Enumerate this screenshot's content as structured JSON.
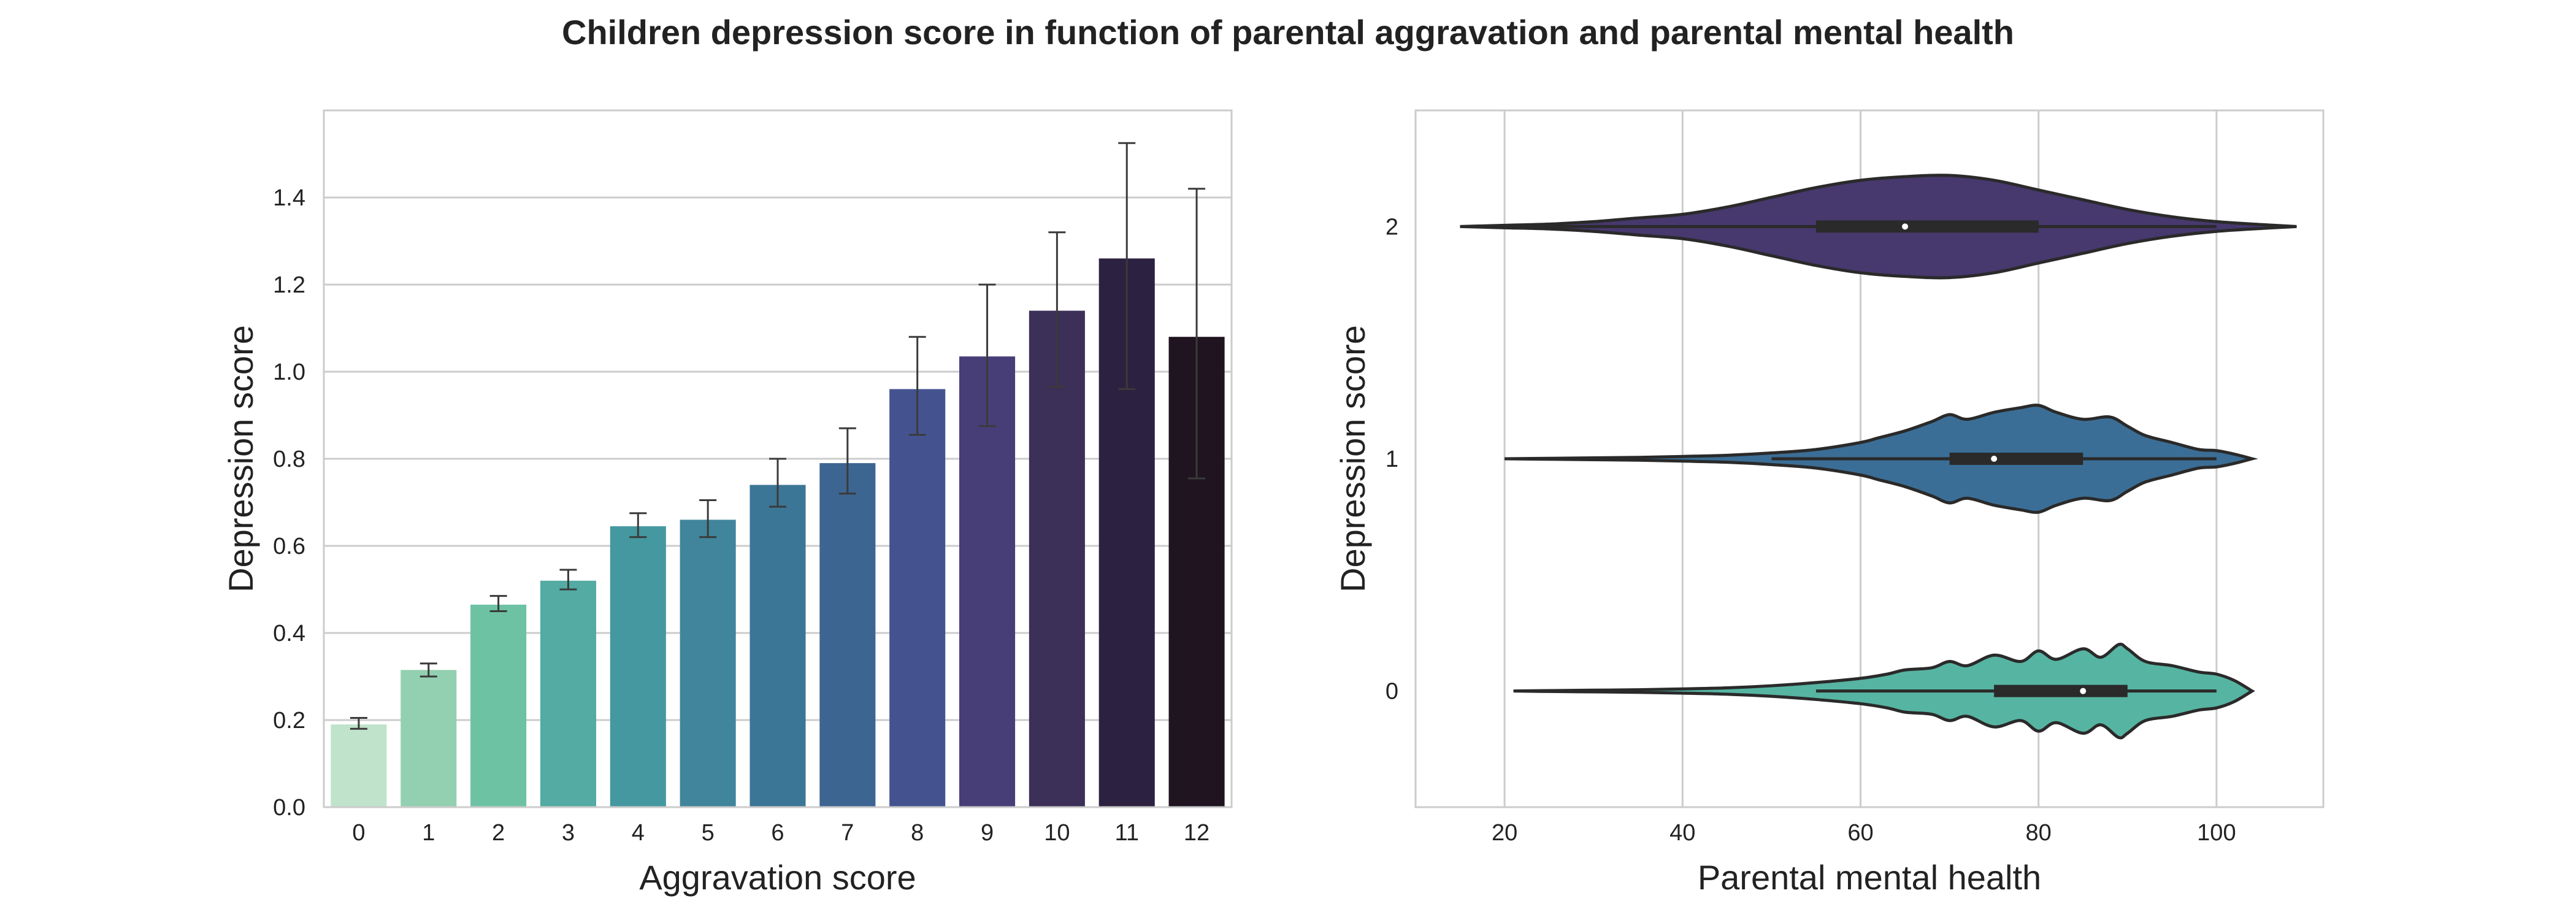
{
  "figure": {
    "title": "Children depression score in function of parental aggravation and parental mental health"
  },
  "chart_data": [
    {
      "type": "bar",
      "title": "",
      "xlabel": "Aggravation score",
      "ylabel": "Depression score",
      "categories": [
        "0",
        "1",
        "2",
        "3",
        "4",
        "5",
        "6",
        "7",
        "8",
        "9",
        "10",
        "11",
        "12"
      ],
      "values": [
        0.19,
        0.315,
        0.465,
        0.52,
        0.645,
        0.66,
        0.74,
        0.79,
        0.96,
        1.035,
        1.14,
        1.26,
        1.08
      ],
      "error_low": [
        0.18,
        0.3,
        0.45,
        0.5,
        0.62,
        0.62,
        0.69,
        0.72,
        0.855,
        0.875,
        0.965,
        0.96,
        0.755
      ],
      "error_high": [
        0.205,
        0.33,
        0.485,
        0.545,
        0.675,
        0.705,
        0.8,
        0.87,
        1.08,
        1.2,
        1.32,
        1.525,
        1.42
      ],
      "colors": [
        "#bfe3cb",
        "#93d0b1",
        "#6dc2a4",
        "#53aba3",
        "#4598a0",
        "#40859b",
        "#3c7696",
        "#3d6592",
        "#445390",
        "#473e78",
        "#3c2f58",
        "#2c2140",
        "#1f141f"
      ],
      "ylim": [
        0,
        1.6
      ],
      "yticks": [
        "0.0",
        "0.2",
        "0.4",
        "0.6",
        "0.8",
        "1.0",
        "1.2",
        "1.4"
      ],
      "ytick_values": [
        0,
        0.2,
        0.4,
        0.6,
        0.8,
        1.0,
        1.2,
        1.4
      ],
      "grid": "horizontal"
    },
    {
      "type": "violin",
      "title": "",
      "xlabel": "Parental mental health",
      "ylabel": "Depression score",
      "xlim": [
        10,
        112
      ],
      "xticks": [
        "20",
        "40",
        "60",
        "80",
        "100"
      ],
      "xtick_values": [
        20,
        40,
        60,
        80,
        100
      ],
      "ylim": [
        -0.5,
        2.5
      ],
      "grid": "vertical",
      "series": [
        {
          "name": "2",
          "position": 2,
          "color": "#47386e",
          "min": 15,
          "max": 109,
          "q1": 55,
          "median": 65,
          "q3": 80,
          "whisker_low": 20,
          "whisker_high": 100,
          "max_halfwidth": 0.22,
          "profile_x": [
            15,
            20,
            25,
            30,
            35,
            40,
            45,
            50,
            55,
            60,
            65,
            70,
            75,
            80,
            85,
            90,
            95,
            100,
            105,
            109
          ],
          "profile_w": [
            0.0,
            0.005,
            0.01,
            0.02,
            0.035,
            0.05,
            0.08,
            0.12,
            0.16,
            0.19,
            0.205,
            0.21,
            0.19,
            0.15,
            0.11,
            0.07,
            0.04,
            0.02,
            0.008,
            0.0
          ]
        },
        {
          "name": "1",
          "position": 1,
          "color": "#3b6e96",
          "min": 20,
          "max": 104,
          "q1": 70,
          "median": 75,
          "q3": 85,
          "whisker_low": 50,
          "whisker_high": 100,
          "max_halfwidth": 0.23,
          "profile_x": [
            20,
            25,
            30,
            35,
            40,
            45,
            50,
            55,
            60,
            62,
            65,
            68,
            70,
            72,
            75,
            78,
            80,
            82,
            85,
            88,
            90,
            92,
            95,
            98,
            100,
            102,
            104
          ],
          "profile_w": [
            0.0,
            0.002,
            0.004,
            0.006,
            0.01,
            0.015,
            0.025,
            0.04,
            0.07,
            0.09,
            0.12,
            0.16,
            0.19,
            0.17,
            0.2,
            0.22,
            0.23,
            0.2,
            0.17,
            0.18,
            0.14,
            0.1,
            0.07,
            0.04,
            0.035,
            0.02,
            0.0
          ]
        },
        {
          "name": "0",
          "position": 0,
          "color": "#56b4a2",
          "min": 21,
          "max": 104,
          "q1": 75,
          "median": 85,
          "q3": 90,
          "whisker_low": 55,
          "whisker_high": 100,
          "max_halfwidth": 0.2,
          "profile_x": [
            21,
            25,
            30,
            35,
            40,
            45,
            50,
            55,
            60,
            63,
            65,
            68,
            70,
            72,
            75,
            78,
            80,
            82,
            85,
            87,
            89,
            90,
            92,
            95,
            98,
            100,
            102,
            104
          ],
          "profile_w": [
            0.0,
            0.002,
            0.004,
            0.006,
            0.01,
            0.015,
            0.025,
            0.04,
            0.06,
            0.08,
            0.1,
            0.11,
            0.14,
            0.12,
            0.17,
            0.14,
            0.19,
            0.15,
            0.2,
            0.16,
            0.22,
            0.2,
            0.14,
            0.12,
            0.09,
            0.08,
            0.05,
            0.0
          ]
        }
      ]
    }
  ]
}
